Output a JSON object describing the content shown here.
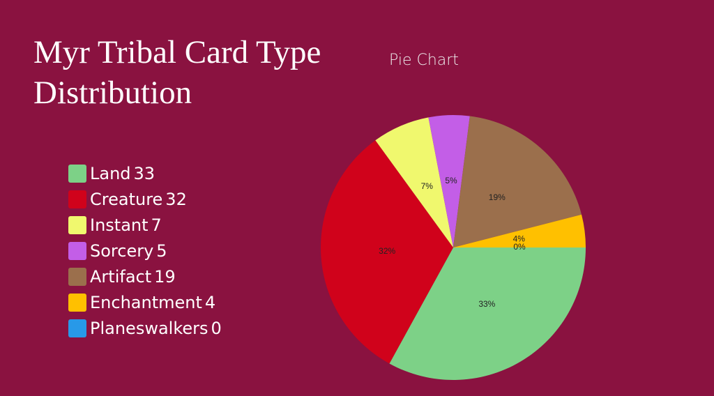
{
  "slide_title": "Myr Tribal Card Type Distribution",
  "chart_data": {
    "type": "pie",
    "title": "Pie Chart",
    "categories": [
      "Land",
      "Creature",
      "Instant",
      "Sorcery",
      "Artifact",
      "Enchantment",
      "Planeswalkers"
    ],
    "values": [
      33,
      32,
      7,
      5,
      19,
      4,
      0
    ],
    "value_labels": [
      "33%",
      "32%",
      "7%",
      "5%",
      "19%",
      "4%",
      "0%"
    ],
    "colors": [
      "#7dd187",
      "#d0021b",
      "#f0f86e",
      "#c35ee7",
      "#9b6f4c",
      "#ffc000",
      "#2899e8"
    ]
  }
}
